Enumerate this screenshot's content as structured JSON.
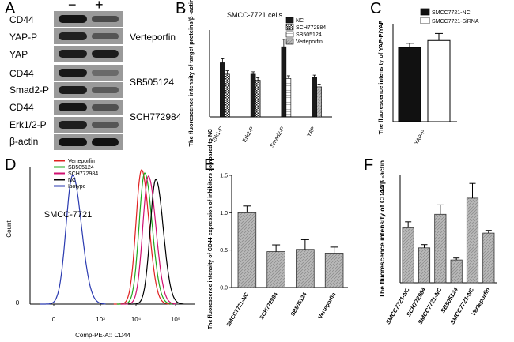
{
  "panels": {
    "a": "A",
    "b": "B",
    "c": "C",
    "d": "D",
    "e": "E",
    "f": "F"
  },
  "panel_a": {
    "treatment_minus": "−",
    "treatment_plus": "+",
    "rows": [
      "CD44",
      "YAP-P",
      "YAP",
      "CD44",
      "Smad2-P",
      "CD44",
      "Erk1/2-P",
      "β-actin"
    ],
    "groups": [
      "Verteporfin",
      "SB505124",
      "SCH772984"
    ]
  },
  "chart_data": [
    {
      "panel": "B",
      "type": "bar",
      "title": "SMCC-7721 cells",
      "ylabel": "The fluorescence intensity of target proteins/β -actin",
      "categories": [
        "Erk1-P",
        "Erk2-P",
        "Smad2-P",
        "YAP"
      ],
      "ylim": [
        0,
        2.6
      ],
      "series": [
        {
          "name": "NC",
          "values": [
            1.62,
            1.28,
            2.1,
            1.18
          ],
          "errors": [
            0.12,
            0.07,
            0.22,
            0.07
          ]
        },
        {
          "name": "SCH772984",
          "values": [
            1.28,
            1.1,
            null,
            null
          ],
          "errors": [
            0.1,
            0.07,
            null,
            null
          ]
        },
        {
          "name": "SB505124",
          "values": [
            null,
            null,
            1.15,
            null
          ],
          "errors": [
            null,
            null,
            0.08,
            null
          ]
        },
        {
          "name": "Verteporfin",
          "values": [
            null,
            null,
            null,
            0.9
          ],
          "errors": [
            null,
            null,
            null,
            0.08
          ]
        }
      ],
      "colors": [
        "#1a1a1a",
        "#ffffff",
        "#ffffff",
        "#aaaaaa"
      ]
    },
    {
      "panel": "C",
      "type": "bar",
      "ylabel": "The fluorescence intensity of YAP-P/YAP",
      "categories": [
        "YAP-P"
      ],
      "ylim": [
        0,
        0.7
      ],
      "series": [
        {
          "name": "SMCC7721-NC",
          "values": [
            0.53
          ],
          "errors": [
            0.03
          ]
        },
        {
          "name": "SMCC7721-SiRNA",
          "values": [
            0.58
          ],
          "errors": [
            0.05
          ]
        }
      ],
      "colors": [
        "#111111",
        "#ffffff"
      ]
    },
    {
      "panel": "D",
      "type": "line",
      "annotation": "SMCC-7721",
      "ylabel": "Count",
      "xlabel": "Comp-PE-A:: CD44",
      "x_scale": "log",
      "x_ticks": [
        "0",
        "10³",
        "10⁴",
        "10⁵"
      ],
      "y_tick": "0",
      "series": [
        {
          "name": "Verteporfin",
          "color": "#e02020",
          "peak_x": 8000
        },
        {
          "name": "SB505124",
          "color": "#1faa1f",
          "peak_x": 10000
        },
        {
          "name": "SCH772984",
          "color": "#d01070",
          "peak_x": 13000
        },
        {
          "name": "NC",
          "color": "#000000",
          "peak_x": 22000
        },
        {
          "name": "Isotype",
          "color": "#2a3ab0",
          "peak_x": 60
        }
      ]
    },
    {
      "panel": "E",
      "type": "bar",
      "ylabel": "The fluorescence intensity of CD44 expression of inhibitors compared to NC",
      "categories": [
        "SMCC7721-NC",
        "SCH772984",
        "SB505124",
        "Verteporfin"
      ],
      "yticks": [
        "0.0",
        "0.5",
        "1.0",
        "1.5"
      ],
      "ylim": [
        0,
        1.5
      ],
      "values": [
        1.0,
        0.48,
        0.51,
        0.46
      ],
      "errors": [
        0.09,
        0.09,
        0.13,
        0.08
      ]
    },
    {
      "panel": "F",
      "type": "bar",
      "ylabel": "The fluorescence intensity of CD44/β -actin",
      "categories": [
        "SMCC7721-NC",
        "SCH772984",
        "SMCC7721-NC",
        "SB505124",
        "SMCC7721-NC",
        "Verteporfin"
      ],
      "ylim": [
        0,
        4
      ],
      "values": [
        2.05,
        1.3,
        2.55,
        0.85,
        3.15,
        1.85
      ],
      "errors": [
        0.22,
        0.12,
        0.35,
        0.07,
        0.55,
        0.1
      ]
    }
  ]
}
